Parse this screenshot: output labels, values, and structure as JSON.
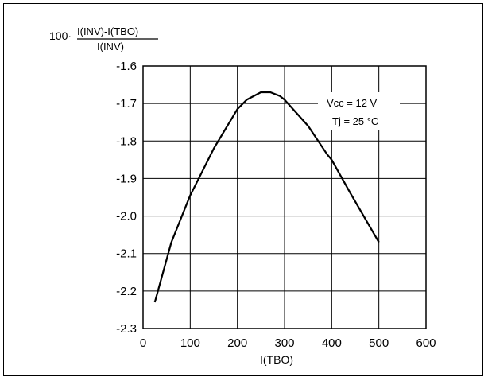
{
  "chart_data": {
    "type": "line",
    "xlabel": "I(TBO)",
    "ylabel": {
      "prefix": "100·",
      "numerator": "I(INV)-I(TBO)",
      "denominator": "I(INV)"
    },
    "xlim": [
      0,
      600
    ],
    "ylim": [
      -2.3,
      -1.6
    ],
    "x_ticks": [
      0,
      100,
      200,
      300,
      400,
      500,
      600
    ],
    "x_tick_labels": [
      "0",
      "100",
      "200",
      "300",
      "400",
      "500",
      "600"
    ],
    "y_ticks": [
      -1.6,
      -1.7,
      -1.8,
      -1.9,
      -2.0,
      -2.1,
      -2.2,
      -2.3
    ],
    "y_tick_labels": [
      "-1.6",
      "-1.7",
      "-1.8",
      "-1.9",
      "-2.0",
      "-2.1",
      "-2.2",
      "-2.3"
    ],
    "grid": true,
    "annotations": [
      "Vcc = 12 V",
      "Tj = 25 °C"
    ],
    "series": [
      {
        "x": [
          25,
          60,
          100,
          110,
          150,
          200,
          220,
          250,
          270,
          290,
          300,
          350,
          390,
          400,
          440,
          500
        ],
        "y": [
          -2.23,
          -2.07,
          -1.945,
          -1.92,
          -1.82,
          -1.715,
          -1.69,
          -1.67,
          -1.67,
          -1.68,
          -1.69,
          -1.76,
          -1.835,
          -1.85,
          -1.94,
          -2.07
        ]
      }
    ],
    "colors": {
      "line": "#000000",
      "grid": "#000000"
    }
  }
}
